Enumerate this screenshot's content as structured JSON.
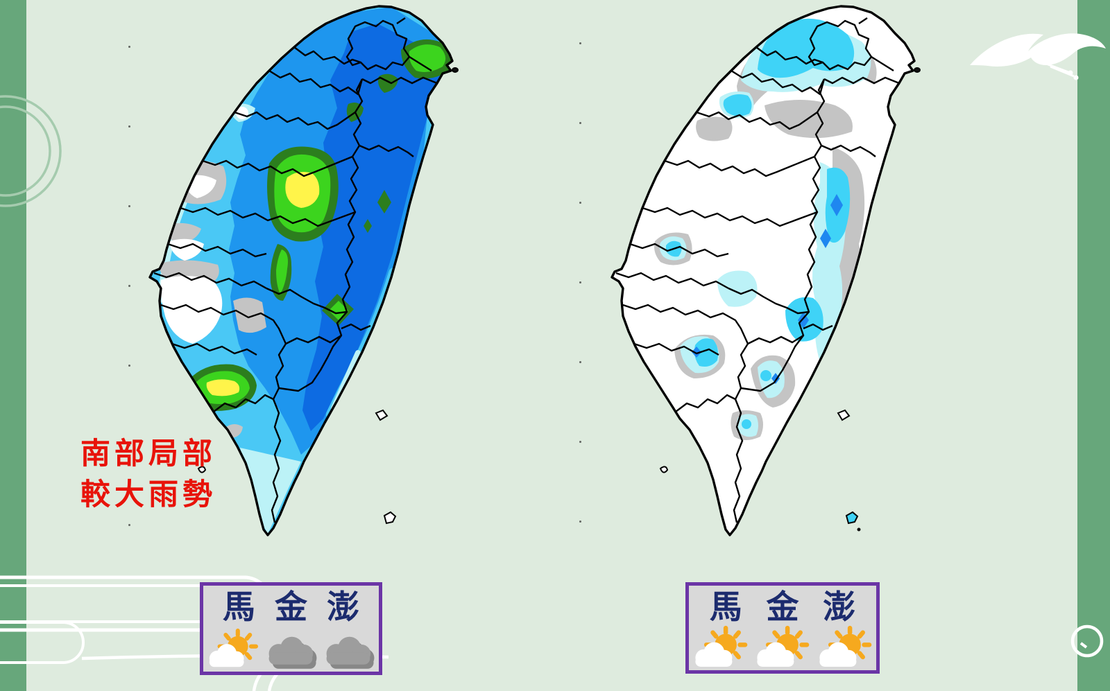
{
  "colors": {
    "page_bg": "#DEEBDE",
    "frame_green": "#67A77B",
    "legend_border": "#6B35A6",
    "legend_bg": "#D9D9D9",
    "legend_text": "#1C2B6E",
    "annotation_red": "#E8130A",
    "rain_levels": {
      "none_white": "#FFFFFF",
      "cloud_gray": "#C4C4C4",
      "pale_cyan": "#BCF2F7",
      "cyan": "#4AC8F5",
      "light_blue": "#1E96EE",
      "blue": "#0D6BE2",
      "dark_green": "#2C7E1E",
      "green": "#3CD41E",
      "yellow": "#FFF44A"
    }
  },
  "annotation": {
    "line1": "南部局部",
    "line2": "較大雨勢"
  },
  "legend_left": {
    "labels": [
      "馬",
      "金",
      "澎"
    ],
    "icons": [
      "partly-sunny-icon",
      "cloudy-icon",
      "cloudy-icon"
    ]
  },
  "legend_right": {
    "labels": [
      "馬",
      "金",
      "澎"
    ],
    "icons": [
      "partly-sunny-icon",
      "partly-sunny-icon",
      "partly-sunny-icon"
    ]
  },
  "decor": {
    "bird": "seagull-icon",
    "ring": "ring-ornament-icon",
    "swirl": "ribbon-swirl-ornament"
  }
}
